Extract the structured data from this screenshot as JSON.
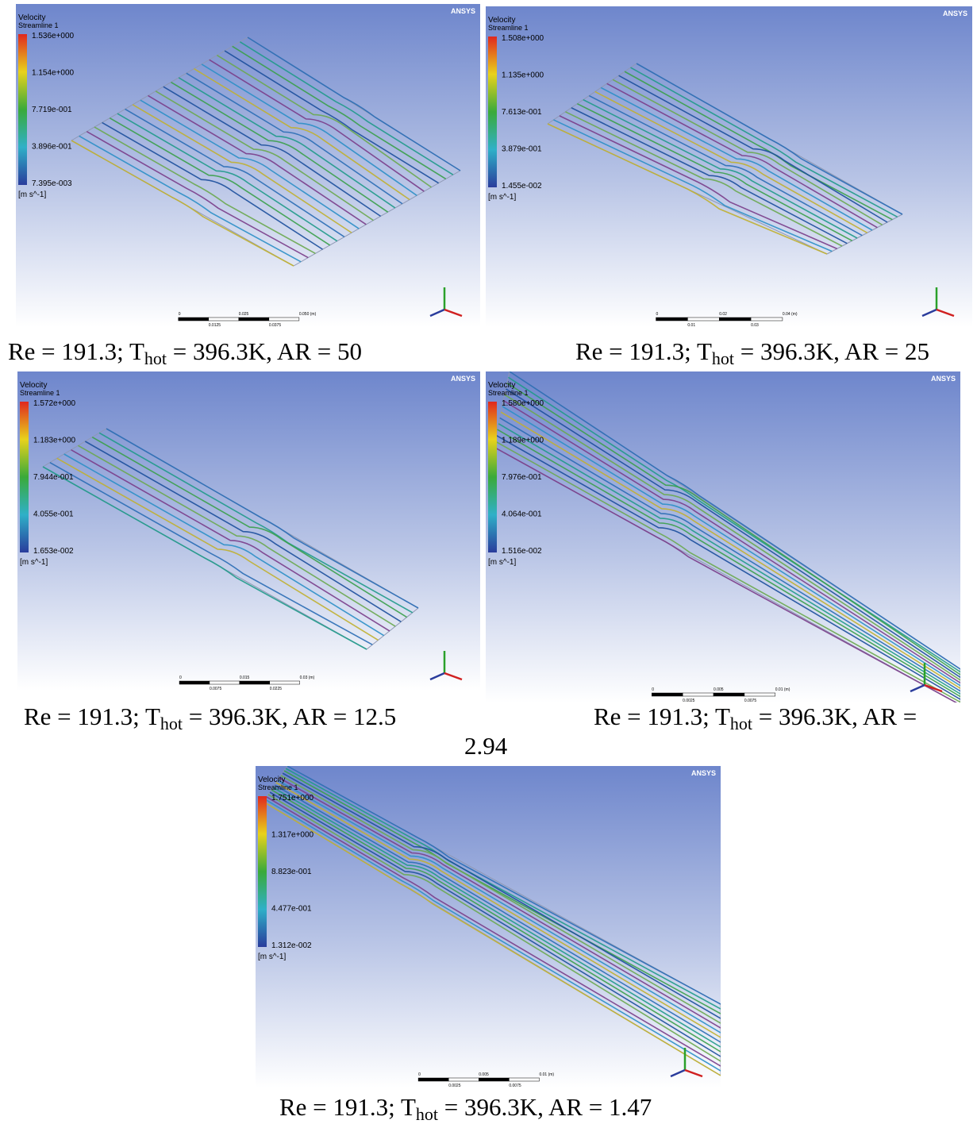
{
  "panels": [
    {
      "logo": "ANSYS",
      "legend": {
        "title": "Velocity",
        "subtitle": "Streamline 1",
        "values": [
          "1.536e+000",
          "1.154e+000",
          "7.719e-001",
          "3.896e-001",
          "7.395e-003"
        ],
        "unit": "[m s^-1]"
      },
      "scale": {
        "top": [
          "0",
          "0.025",
          "0.050 (m)"
        ],
        "bottom": [
          "0.0125",
          "0.0375"
        ]
      },
      "caption": {
        "prefix": "Re = 191.3; T",
        "sub": "hot",
        "suffix": " = 396.3K, AR = 50"
      }
    },
    {
      "logo": "ANSYS",
      "legend": {
        "title": "Velocity",
        "subtitle": "Streamline 1",
        "values": [
          "1.508e+000",
          "1.135e+000",
          "7.613e-001",
          "3.879e-001",
          "1.455e-002"
        ],
        "unit": "[m s^-1]"
      },
      "scale": {
        "top": [
          "0",
          "0.02",
          "0.04 (m)"
        ],
        "bottom": [
          "0.01",
          "0.03"
        ]
      },
      "caption": {
        "prefix": "Re = 191.3; T",
        "sub": "hot",
        "suffix": " = 396.3K, AR = 25"
      }
    },
    {
      "logo": "ANSYS",
      "legend": {
        "title": "Velocity",
        "subtitle": "Streamline 1",
        "values": [
          "1.572e+000",
          "1.183e+000",
          "7.944e-001",
          "4.055e-001",
          "1.653e-002"
        ],
        "unit": "[m s^-1]"
      },
      "scale": {
        "top": [
          "0",
          "0.015",
          "0.03 (m)"
        ],
        "bottom": [
          "0.0075",
          "0.0225"
        ]
      },
      "caption": {
        "prefix": "Re = 191.3; T",
        "sub": "hot",
        "suffix": " = 396.3K, AR = 12.5"
      }
    },
    {
      "logo": "ANSYS",
      "legend": {
        "title": "Velocity",
        "subtitle": "Streamline 1",
        "values": [
          "1.580e+000",
          "1.189e+000",
          "7.976e-001",
          "4.064e-001",
          "1.516e-002"
        ],
        "unit": "[m s^-1]"
      },
      "scale": {
        "top": [
          "0",
          "0.005",
          "0.01 (m)"
        ],
        "bottom": [
          "0.0025",
          "0.0075"
        ]
      },
      "caption": {
        "prefix": "Re = 191.3; T",
        "sub": "hot",
        "suffix": " = 396.3K, AR =",
        "continuation": "2.94"
      }
    },
    {
      "logo": "ANSYS",
      "legend": {
        "title": "Velocity",
        "subtitle": "Streamline 1",
        "values": [
          "1.751e+000",
          "1.317e+000",
          "8.823e-001",
          "4.477e-001",
          "1.312e-002"
        ],
        "unit": "[m s^-1]"
      },
      "scale": {
        "top": [
          "0",
          "0.005",
          "0.01 (m)"
        ],
        "bottom": [
          "0.0025",
          "0.0075"
        ]
      },
      "caption": {
        "prefix": "Re = 191.3; T",
        "sub": "hot",
        "suffix": " = 396.3K, AR = 1.47"
      }
    }
  ]
}
